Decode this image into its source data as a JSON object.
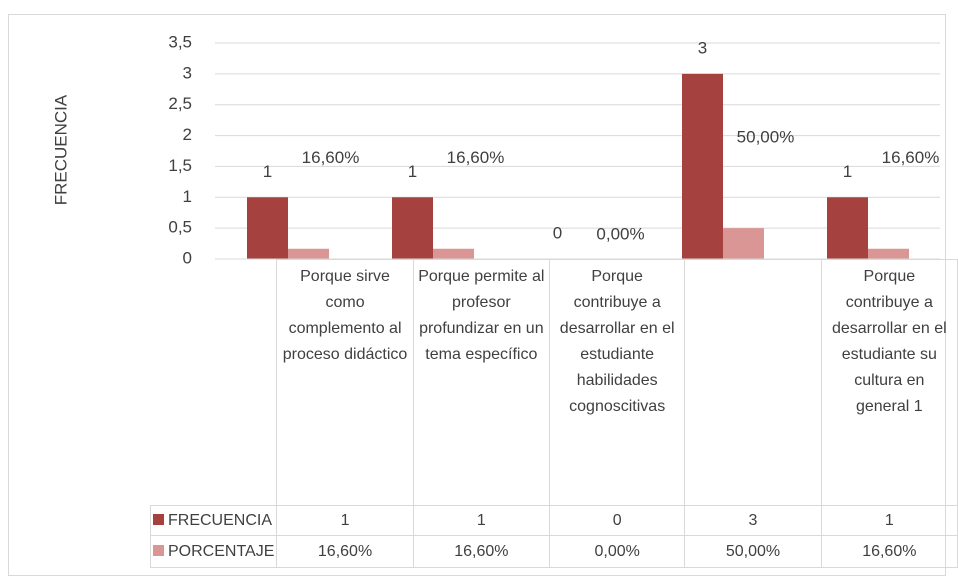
{
  "chart_data": {
    "type": "bar",
    "y_label": "FRECUENCIA",
    "categories": [
      "Porque sirve como complemento al proceso didáctico",
      "Porque permite al profesor profundizar en un tema específico",
      "Porque contribuye a desarrollar en el estudiante habilidades cognoscitivas",
      null,
      "Porque contribuye a desarrollar en el estudiante su cultura en general 1"
    ],
    "series": [
      {
        "name": "FRECUENCIA",
        "color": "#a5413f",
        "values": [
          1,
          1,
          0,
          3,
          1
        ]
      },
      {
        "name": "PORCENTAJE",
        "color": "#d99694",
        "values": [
          0.166,
          0.166,
          0,
          0.5,
          0.166
        ],
        "value_labels": [
          "16,60%",
          "16,60%",
          "0,00%",
          "50,00%",
          "16,60%"
        ]
      }
    ],
    "ylim": [
      0,
      3.5
    ],
    "yticks": [
      0,
      {
        "value": 0.5,
        "label": "0,5"
      },
      1,
      {
        "value": 1.5,
        "label": "1,5"
      },
      2,
      {
        "value": 2.5,
        "label": "2,5"
      },
      3,
      {
        "value": 3.5,
        "label": "3,5"
      }
    ],
    "grid": true,
    "data_table": true
  }
}
